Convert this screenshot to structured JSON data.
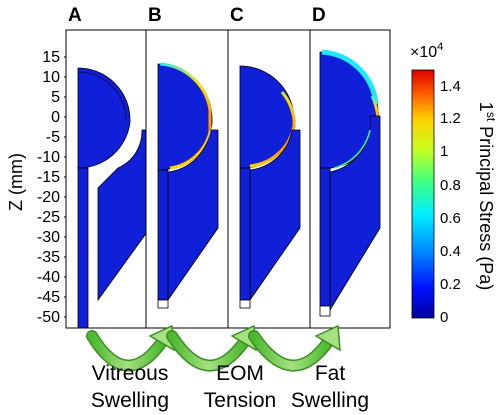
{
  "panels": [
    {
      "letter": "A"
    },
    {
      "letter": "B"
    },
    {
      "letter": "C"
    },
    {
      "letter": "D"
    }
  ],
  "y_axis": {
    "title": "Z (mm)",
    "ticks": [
      "15",
      "10",
      "5",
      "0",
      "-5",
      "-10",
      "-15",
      "-20",
      "-25",
      "-30",
      "-35",
      "-40",
      "-45",
      "-50"
    ]
  },
  "colorbar": {
    "title_prefix": "1",
    "title_superscript": "st",
    "title_suffix": " Principal Stress (Pa)",
    "multiplier_base": "×10",
    "multiplier_exponent": "4",
    "ticks": [
      "1.4",
      "1.2",
      "1",
      "0.8",
      "0.6",
      "0.4",
      "0.2",
      "0"
    ]
  },
  "transitions": [
    {
      "line1": "Vitreous",
      "line2": "Swelling"
    },
    {
      "line1": "EOM",
      "line2": "Tension"
    },
    {
      "line1": "Fat",
      "line2": "Swelling"
    }
  ],
  "colors": {
    "model_blue": "#1020d8",
    "arrow_green": "#5ec43c",
    "arrow_green_light": "#a6e082"
  }
}
